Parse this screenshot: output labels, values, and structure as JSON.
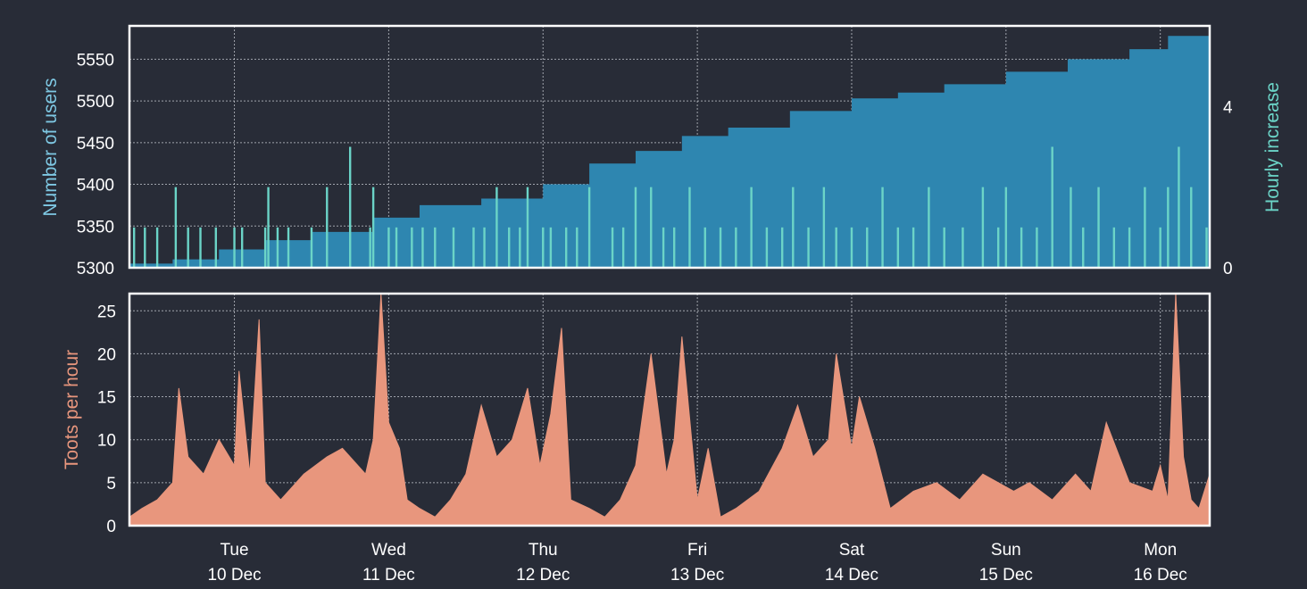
{
  "colors": {
    "background": "#282c37",
    "users_area": "#2e86b0",
    "hourly_increase": "#6bd4c7",
    "toots": "#e8967d",
    "users_label": "#7ec8e3",
    "hourly_label": "#6bd4c7",
    "toots_label": "#e8967d"
  },
  "chart_data": [
    {
      "type": "area",
      "ylabel": "Number of users",
      "y2label": "Hourly increase",
      "ylim": [
        5300,
        5590
      ],
      "y2lim": [
        0,
        6
      ],
      "yticks": [
        5300,
        5350,
        5400,
        5450,
        5500,
        5550
      ],
      "y2ticks": [
        0,
        4
      ],
      "xlim_days": [
        9.32,
        16.32
      ],
      "grid": true,
      "series": [
        {
          "kind": "area",
          "x": [
            9.32,
            9.6,
            9.9,
            10.2,
            10.5,
            10.9,
            11.2,
            11.6,
            12.0,
            12.3,
            12.6,
            12.9,
            13.2,
            13.6,
            14.0,
            14.3,
            14.6,
            15.0,
            15.4,
            15.8,
            16.05,
            16.32
          ],
          "values": [
            5305,
            5310,
            5322,
            5333,
            5343,
            5360,
            5375,
            5383,
            5400,
            5425,
            5440,
            5458,
            5468,
            5488,
            5503,
            5510,
            5520,
            5535,
            5550,
            5562,
            5578,
            5590
          ]
        },
        {
          "kind": "spikes",
          "axis": "y2",
          "x": [
            9.35,
            9.42,
            9.5,
            9.62,
            9.7,
            9.78,
            9.88,
            10.0,
            10.05,
            10.2,
            10.22,
            10.28,
            10.35,
            10.5,
            10.6,
            10.75,
            10.88,
            10.9,
            11.0,
            11.05,
            11.15,
            11.22,
            11.3,
            11.42,
            11.55,
            11.62,
            11.7,
            11.78,
            11.85,
            11.9,
            12.0,
            12.05,
            12.15,
            12.22,
            12.3,
            12.45,
            12.52,
            12.6,
            12.7,
            12.78,
            12.85,
            12.95,
            13.05,
            13.15,
            13.25,
            13.35,
            13.45,
            13.55,
            13.62,
            13.72,
            13.82,
            13.9,
            14.0,
            14.1,
            14.2,
            14.3,
            14.4,
            14.5,
            14.6,
            14.72,
            14.85,
            14.95,
            15.0,
            15.1,
            15.2,
            15.3,
            15.42,
            15.5,
            15.6,
            15.7,
            15.8,
            15.9,
            16.0,
            16.05,
            16.12,
            16.2,
            16.3
          ],
          "values": [
            1,
            1,
            1,
            2,
            1,
            1,
            1,
            1,
            1,
            1,
            2,
            1,
            1,
            1,
            2,
            3,
            1,
            2,
            1,
            1,
            1,
            1,
            1,
            1,
            1,
            1,
            2,
            1,
            1,
            2,
            1,
            1,
            1,
            1,
            2,
            1,
            1,
            2,
            2,
            1,
            1,
            2,
            1,
            1,
            1,
            2,
            1,
            1,
            2,
            1,
            2,
            1,
            1,
            1,
            2,
            1,
            1,
            2,
            1,
            1,
            2,
            1,
            2,
            1,
            1,
            3,
            2,
            1,
            2,
            1,
            1,
            2,
            1,
            2,
            3,
            2,
            1
          ]
        }
      ]
    },
    {
      "type": "area",
      "ylabel": "Toots per hour",
      "ylim": [
        0,
        27
      ],
      "yticks": [
        0,
        5,
        10,
        15,
        20,
        25
      ],
      "xlim_days": [
        9.32,
        16.32
      ],
      "grid": true,
      "xticks": [
        {
          "day": 10,
          "line1": "Tue",
          "line2": "10 Dec"
        },
        {
          "day": 11,
          "line1": "Wed",
          "line2": "11 Dec"
        },
        {
          "day": 12,
          "line1": "Thu",
          "line2": "12 Dec"
        },
        {
          "day": 13,
          "line1": "Fri",
          "line2": "13 Dec"
        },
        {
          "day": 14,
          "line1": "Sat",
          "line2": "14 Dec"
        },
        {
          "day": 15,
          "line1": "Sun",
          "line2": "15 Dec"
        },
        {
          "day": 16,
          "line1": "Mon",
          "line2": "16 Dec"
        }
      ],
      "series": [
        {
          "kind": "area",
          "x": [
            9.32,
            9.4,
            9.5,
            9.6,
            9.64,
            9.7,
            9.8,
            9.9,
            10.0,
            10.03,
            10.1,
            10.16,
            10.2,
            10.3,
            10.45,
            10.6,
            10.7,
            10.85,
            10.9,
            10.95,
            11.0,
            11.07,
            11.12,
            11.2,
            11.3,
            11.4,
            11.5,
            11.6,
            11.7,
            11.8,
            11.9,
            11.98,
            12.05,
            12.12,
            12.18,
            12.3,
            12.4,
            12.5,
            12.6,
            12.7,
            12.8,
            12.85,
            12.9,
            13.0,
            13.07,
            13.15,
            13.25,
            13.4,
            13.55,
            13.65,
            13.75,
            13.85,
            13.9,
            14.0,
            14.05,
            14.15,
            14.25,
            14.4,
            14.55,
            14.7,
            14.85,
            14.95,
            15.05,
            15.15,
            15.3,
            15.45,
            15.55,
            15.65,
            15.8,
            15.95,
            16.0,
            16.05,
            16.1,
            16.15,
            16.2,
            16.25,
            16.32
          ],
          "values": [
            1,
            2,
            3,
            5,
            16,
            8,
            6,
            10,
            7,
            18,
            6,
            24,
            5,
            3,
            6,
            8,
            9,
            6,
            10,
            27,
            12,
            9,
            3,
            2,
            1,
            3,
            6,
            14,
            8,
            10,
            16,
            7,
            13,
            23,
            3,
            2,
            1,
            3,
            7,
            20,
            6,
            10,
            22,
            3,
            9,
            1,
            2,
            4,
            9,
            14,
            8,
            10,
            20,
            9,
            15,
            9,
            2,
            4,
            5,
            3,
            6,
            5,
            4,
            5,
            3,
            6,
            4,
            12,
            5,
            4,
            7,
            3,
            27,
            8,
            3,
            2,
            6
          ]
        }
      ]
    }
  ]
}
